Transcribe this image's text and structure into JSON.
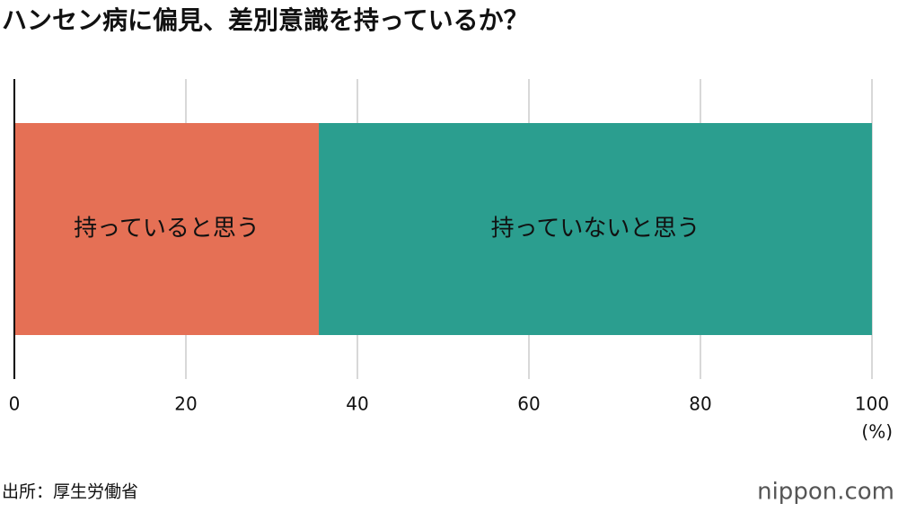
{
  "chart_data": {
    "type": "stacked-bar-horizontal",
    "title": "ハンセン病に偏見、差別意識を持っているか？",
    "categories": [
      null
    ],
    "series": [
      {
        "name": "持っていると思う",
        "color": "#e57055",
        "values": [
          35.5
        ]
      },
      {
        "name": "持っていないと思う",
        "color": "#2b9e8f",
        "values": [
          64.5
        ]
      }
    ],
    "xlim": [
      0,
      100
    ],
    "xticks": [
      0,
      20,
      40,
      60,
      80,
      100
    ],
    "xlabel": "(%)",
    "grid": true,
    "source": "出所：厚生労働省",
    "logo": "nippon.com"
  }
}
